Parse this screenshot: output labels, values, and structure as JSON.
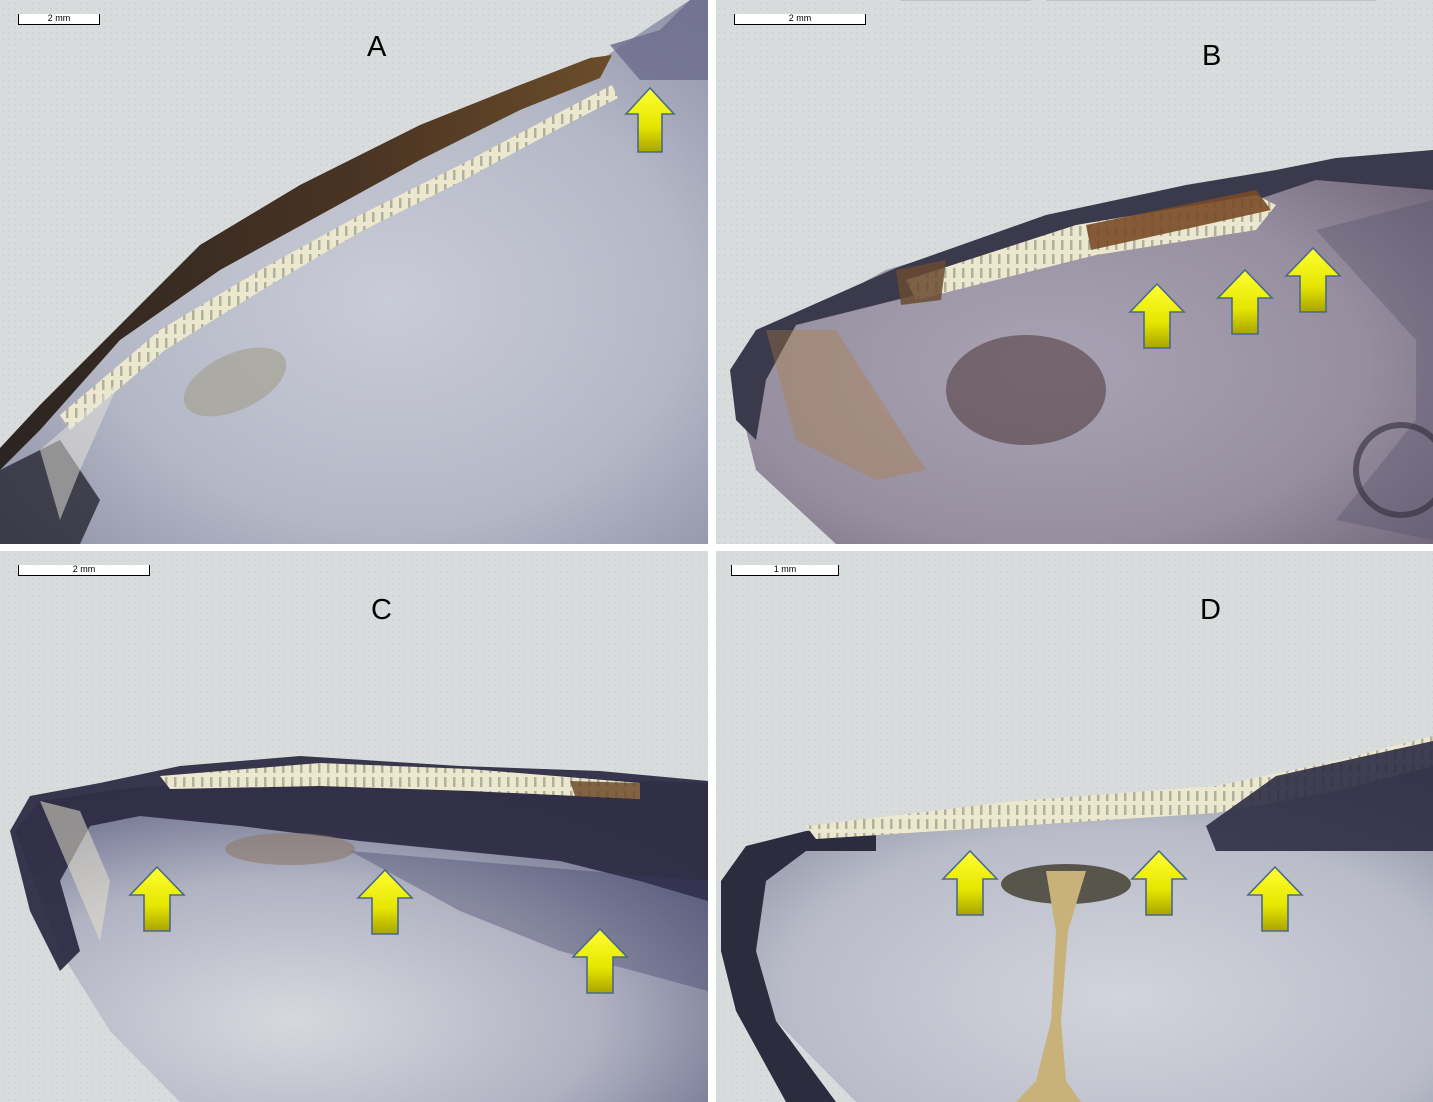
{
  "panels": [
    {
      "id": "A",
      "label": "A",
      "scale_label": "2 mm",
      "arrow_count": 1
    },
    {
      "id": "B",
      "label": "B",
      "scale_label": "2 mm",
      "arrow_count": 3
    },
    {
      "id": "C",
      "label": "C",
      "scale_label": "2 mm",
      "arrow_count": 3
    },
    {
      "id": "D",
      "label": "D",
      "scale_label": "1 mm",
      "arrow_count": 3
    }
  ],
  "colors": {
    "arrow_fill": "#e8e800",
    "arrow_stroke": "#4a6a8a",
    "background": "#d9dcdd",
    "nacre": "#b9bdc9",
    "periostracum": "#3a2e2a",
    "hinge_band": "#e7e4cc"
  },
  "icons": {
    "arrow": "yellow-up-arrow"
  }
}
